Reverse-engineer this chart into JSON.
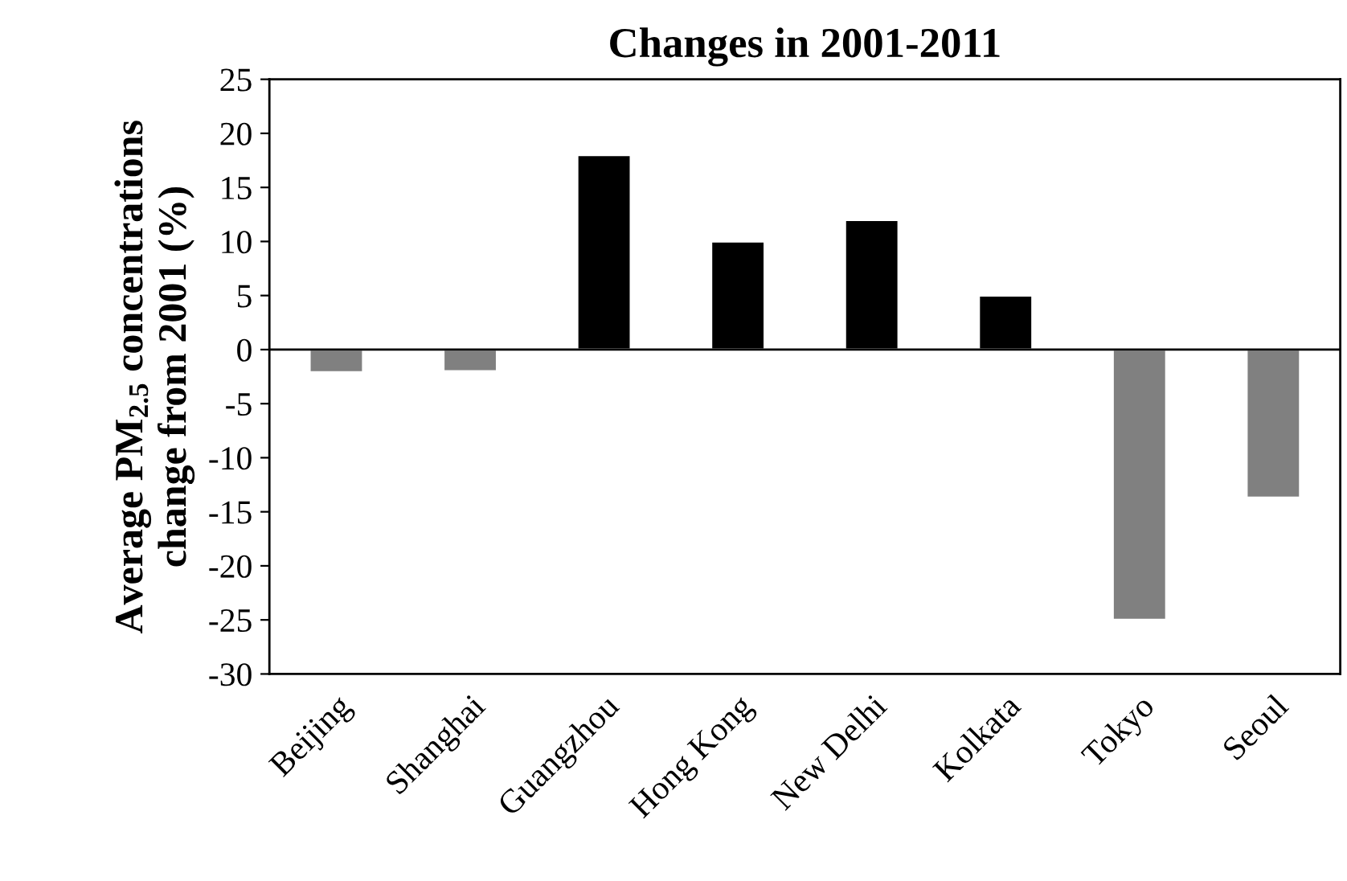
{
  "chart_data": {
    "type": "bar",
    "title": "Changes in 2001-2011",
    "ylabel": "Average PM$_{2.5}$ concentrations\nchange from 2001 (%)",
    "categories": [
      "Beijing",
      "Shanghai",
      "Guangzhou",
      "Hong Kong",
      "New Delhi",
      "Kolkata",
      "Tokyo",
      "Seoul"
    ],
    "values": [
      -2.1,
      -2,
      18,
      10,
      12,
      5,
      -25,
      -13.7
    ],
    "colors": [
      "#808080",
      "#808080",
      "#000000",
      "#000000",
      "#000000",
      "#000000",
      "#808080",
      "#808080"
    ],
    "ylim": [
      -30,
      25
    ],
    "yticks": [
      -30,
      -25,
      -20,
      -15,
      -10,
      -5,
      0,
      5,
      10,
      15,
      20,
      25
    ],
    "legend": false
  }
}
